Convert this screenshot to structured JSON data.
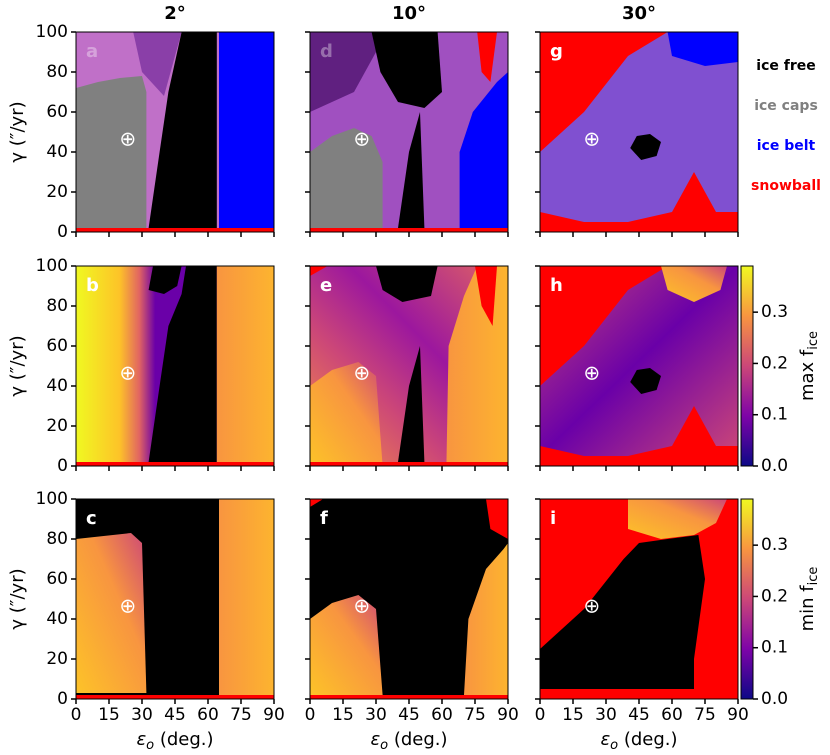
{
  "chart_data": {
    "type": "heatmap",
    "columns": [
      {
        "title": "2°"
      },
      {
        "title": "10°"
      },
      {
        "title": "30°"
      }
    ],
    "panels": [
      "a",
      "b",
      "c",
      "d",
      "e",
      "f",
      "g",
      "h",
      "i"
    ],
    "xlabel": {
      "text": "ε",
      "sub": "o",
      "rest": " (deg.)"
    },
    "ylabel": "γ (″/yr)",
    "xlim": [
      0,
      90
    ],
    "xticks": [
      0,
      15,
      30,
      45,
      60,
      75,
      90
    ],
    "ylim": [
      0,
      100
    ],
    "yticks": [
      0,
      20,
      40,
      60,
      80,
      100
    ],
    "legend": [
      {
        "name": "ice free",
        "color": "#000000"
      },
      {
        "name": "ice caps",
        "color": "#808080"
      },
      {
        "name": "ice belt",
        "color": "#0000ff"
      },
      {
        "name": "snowball",
        "color": "#ff0000"
      }
    ],
    "colorbars": [
      {
        "text": "max f",
        "sub": "ice"
      },
      {
        "text": "min f",
        "sub": "ice"
      }
    ],
    "cbar_lim": [
      0,
      0.39
    ],
    "cbar_ticks": [
      {
        "value": 0,
        "label": "0.0"
      },
      {
        "value": 0.1,
        "label": "0.1"
      },
      {
        "value": 0.2,
        "label": "0.2"
      },
      {
        "value": 0.3,
        "label": "0.3"
      }
    ],
    "marker": {
      "x": 23.5,
      "y": 46,
      "label": "⊕"
    }
  }
}
